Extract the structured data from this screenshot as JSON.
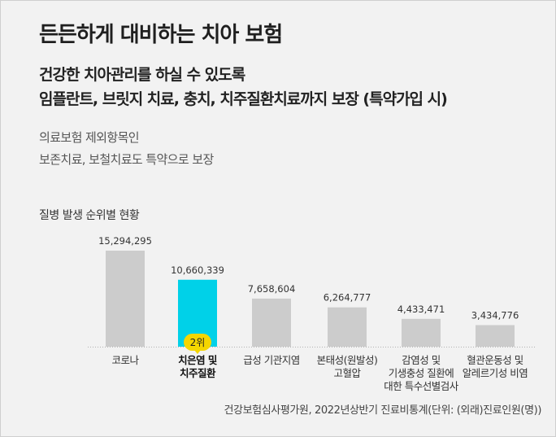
{
  "title": "든든하게 대비하는 치아 보험",
  "subtitle": {
    "line1": "건강한 치아관리를 하실 수 있도록",
    "line2": "임플란트, 브릿지 치료, 충치, 치주질환치료까지 보장 (특약가입 시)"
  },
  "notes": {
    "line1": "의료보험 제외항목인",
    "line2": "보존치료, 보철치료도 특약으로 보장"
  },
  "source": "건강보험심사평가원, 2022년상반기 진료비통계(단위: (외래)진료인원(명))",
  "colors": {
    "bar": "#cccccc",
    "highlight": "#00d1e8",
    "badge": "#f5d600"
  },
  "chart_data": {
    "type": "bar",
    "title": "질병 발생 순위별 현황",
    "xlabel": "",
    "ylabel": "",
    "ylim": [
      0,
      15294295
    ],
    "grid": false,
    "highlight_index": 1,
    "highlight_badge": "2위",
    "categories": [
      [
        "코로나"
      ],
      [
        "치은염 및",
        "치주질환"
      ],
      [
        "급성 기관지염"
      ],
      [
        "본태성(원발성)",
        "고혈압"
      ],
      [
        "감염성 및",
        "기생충성 질환에",
        "대한 특수선별검사"
      ],
      [
        "혈관운동성 및",
        "알레르기성 비염"
      ]
    ],
    "values": [
      15294295,
      10660339,
      7658604,
      6264777,
      4433471,
      3434776
    ],
    "value_labels": [
      "15,294,295",
      "10,660,339",
      "7,658,604",
      "6,264,777",
      "4,433,471",
      "3,434,776"
    ]
  }
}
